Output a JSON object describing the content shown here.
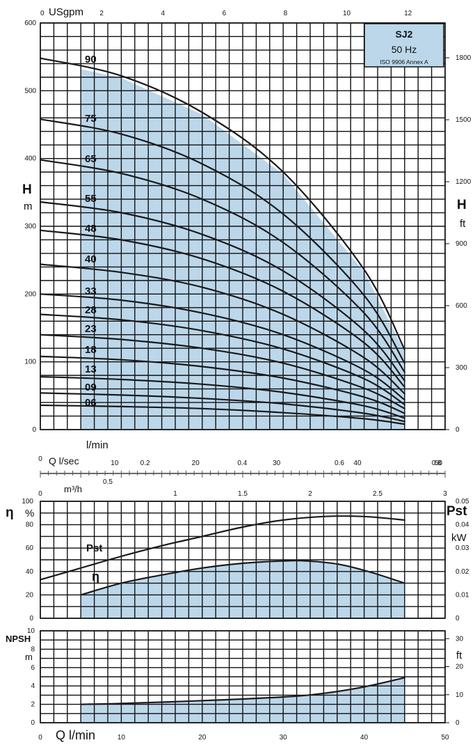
{
  "chart_data": [
    {
      "type": "line",
      "name": "head",
      "title_box": [
        "SJ2",
        "50 Hz",
        "ISO 9906 Annex A"
      ],
      "ylabel_left": [
        "H",
        "m"
      ],
      "ylabel_right": [
        "H",
        "ft"
      ],
      "top_axis_label": "USgpm",
      "top_axis_ticks": [
        "0",
        "2",
        "4",
        "6",
        "8",
        "10",
        "12"
      ],
      "xlim": [
        0,
        50
      ],
      "ylim": [
        0,
        600
      ],
      "y_ticks": [
        "0",
        "100",
        "200",
        "300",
        "400",
        "500",
        "600"
      ],
      "y_ticks_right": [
        "0",
        "300",
        "600",
        "900",
        "1200",
        "1500",
        "1800"
      ],
      "x": [
        0,
        10,
        20,
        30,
        40,
        45
      ],
      "series": [
        {
          "name": "90",
          "values": [
            548,
            522,
            468,
            380,
            236,
            118
          ]
        },
        {
          "name": "75",
          "values": [
            458,
            436,
            392,
            318,
            198,
            98
          ]
        },
        {
          "name": "65",
          "values": [
            398,
            378,
            340,
            276,
            172,
            85
          ]
        },
        {
          "name": "55",
          "values": [
            336,
            320,
            288,
            234,
            146,
            72
          ]
        },
        {
          "name": "48",
          "values": [
            294,
            280,
            252,
            204,
            128,
            63
          ]
        },
        {
          "name": "40",
          "values": [
            244,
            232,
            210,
            170,
            106,
            53
          ]
        },
        {
          "name": "33",
          "values": [
            200,
            191,
            172,
            140,
            88,
            44
          ]
        },
        {
          "name": "28",
          "values": [
            170,
            162,
            146,
            119,
            75,
            37
          ]
        },
        {
          "name": "23",
          "values": [
            140,
            133,
            120,
            98,
            61,
            31
          ]
        },
        {
          "name": "18",
          "values": [
            108,
            103,
            93,
            76,
            48,
            24
          ]
        },
        {
          "name": "13",
          "values": [
            78,
            74,
            67,
            55,
            35,
            17
          ]
        },
        {
          "name": "09",
          "values": [
            54,
            51,
            46,
            38,
            24,
            12
          ]
        },
        {
          "name": "06",
          "values": [
            36,
            34,
            31,
            25,
            16,
            8
          ]
        }
      ],
      "shaded_range": [
        5,
        45
      ]
    },
    {
      "type": "line",
      "name": "efficiency-power",
      "ylabel_left": [
        "η",
        "%"
      ],
      "ylabel_right": [
        "Pst",
        "kW"
      ],
      "ylim": [
        0,
        100
      ],
      "ylim_right": [
        0,
        0.05
      ],
      "y_ticks": [
        "0",
        "20",
        "40",
        "60",
        "80",
        "100"
      ],
      "y_ticks_right": [
        "0",
        "0.01",
        "0.02",
        "0.03",
        "0.04",
        "0.05"
      ],
      "x": [
        0,
        5,
        10,
        15,
        20,
        25,
        30,
        35,
        40,
        45
      ],
      "series": [
        {
          "name": "Pst",
          "values": [
            33,
            43,
            53,
            62,
            70,
            78,
            84,
            87,
            87,
            84
          ],
          "x": [
            0,
            5,
            10,
            15,
            20,
            25,
            30,
            35,
            40,
            45
          ]
        },
        {
          "name": "η",
          "values": [
            20,
            30,
            37,
            43,
            47,
            49,
            49,
            46,
            39,
            30
          ],
          "x": [
            5,
            10,
            15,
            20,
            25,
            30,
            33,
            37,
            41,
            45
          ]
        }
      ],
      "shaded_range": [
        5,
        45
      ]
    },
    {
      "type": "line",
      "name": "npsh",
      "ylabel_left": [
        "NPSH",
        "m"
      ],
      "ylabel_right": [
        "ft"
      ],
      "ylim": [
        0,
        10
      ],
      "y_ticks": [
        "0",
        "2",
        "4",
        "6",
        "8",
        "10"
      ],
      "y_ticks_right": [
        "0",
        "10",
        "20",
        "30"
      ],
      "x": [
        5,
        10,
        20,
        30,
        35,
        40,
        45
      ],
      "series": [
        {
          "name": "NPSH",
          "values": [
            2.0,
            2.1,
            2.4,
            2.8,
            3.2,
            3.9,
            4.9
          ]
        }
      ],
      "shaded_range": [
        5,
        45
      ]
    }
  ],
  "flow_axes": {
    "lmin_label": "l/min",
    "lsec_label": "Q l/sec",
    "lsec_ticks": [
      "0",
      "0.2",
      "0.4",
      "0.6",
      "0.8"
    ],
    "lmin_ticks": [
      "0",
      "10",
      "20",
      "30",
      "40",
      "50"
    ],
    "m3h_label": "m³/h",
    "m3h_ticks": [
      "0",
      "0.5",
      "1",
      "1.5",
      "2",
      "2.5",
      "3"
    ],
    "bottom_label": "Q l/min",
    "bottom_ticks": [
      "0",
      "10",
      "20",
      "30",
      "40",
      "50"
    ]
  },
  "colors": {
    "shade": "#bcd7ea",
    "grid": "#111111",
    "title_box": "#bcd7ea"
  }
}
